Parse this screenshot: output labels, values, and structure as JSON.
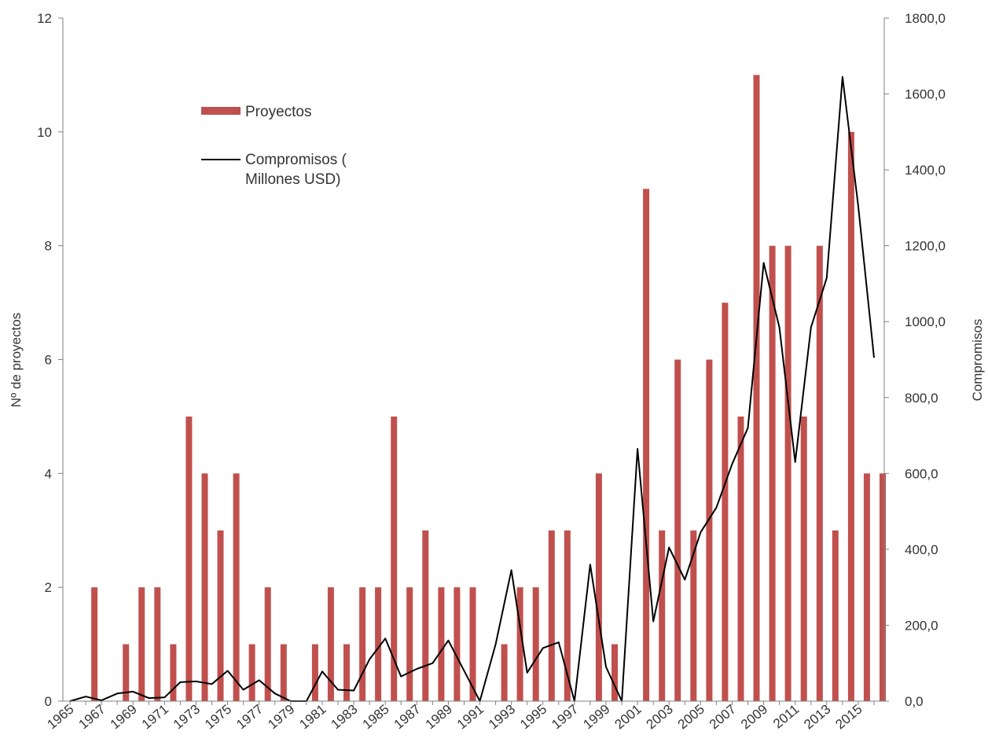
{
  "chart_data": {
    "type": "bar",
    "ylabel_left": "Nº de proyectos",
    "ylabel_right": "Compromisos",
    "ylim_left": [
      0,
      12
    ],
    "ylim_right": [
      0,
      1800
    ],
    "left_ticks": [
      0,
      2,
      4,
      6,
      8,
      10,
      12
    ],
    "right_ticks": [
      "0,0",
      "200,0",
      "400,0",
      "600,0",
      "800,0",
      "1000,0",
      "1200,0",
      "1400,0",
      "1600,0",
      "1800,0"
    ],
    "right_tick_values": [
      0,
      200,
      400,
      600,
      800,
      1000,
      1200,
      1400,
      1600,
      1800
    ],
    "x_tick_labels": [
      "1965",
      "1967",
      "1969",
      "1971",
      "1973",
      "1975",
      "1977",
      "1979",
      "1981",
      "1983",
      "1985",
      "1987",
      "1989",
      "1991",
      "1993",
      "1995",
      "1997",
      "1999",
      "2001",
      "2003",
      "2005",
      "2007",
      "2009",
      "2011",
      "2013",
      "2015"
    ],
    "years": [
      1965,
      1966,
      1967,
      1968,
      1969,
      1970,
      1971,
      1972,
      1973,
      1974,
      1975,
      1976,
      1977,
      1978,
      1979,
      1980,
      1981,
      1982,
      1983,
      1984,
      1985,
      1986,
      1987,
      1988,
      1989,
      1990,
      1991,
      1992,
      1993,
      1994,
      1995,
      1996,
      1997,
      1998,
      1999,
      2000,
      2001,
      2002,
      2003,
      2004,
      2005,
      2006,
      2007,
      2008,
      2009,
      2010,
      2011,
      2012,
      2013,
      2014,
      2015,
      2016
    ],
    "legend": {
      "position": "top-left",
      "bars_label": "Proyectos",
      "line_label_1": "Compromisos (",
      "line_label_2": "Millones USD)"
    },
    "series": [
      {
        "name": "Proyectos",
        "kind": "bar",
        "axis": "left",
        "color": "#c0504d",
        "values": [
          0,
          2,
          0,
          1,
          2,
          2,
          1,
          5,
          4,
          3,
          4,
          1,
          2,
          1,
          0,
          1,
          2,
          1,
          2,
          2,
          5,
          2,
          3,
          2,
          2,
          2,
          0,
          1,
          2,
          2,
          3,
          3,
          0,
          4,
          1,
          0,
          9,
          3,
          6,
          3,
          6,
          7,
          5,
          11,
          8,
          8,
          5,
          8,
          3,
          10,
          4,
          4
        ]
      },
      {
        "name": "Compromisos ( Millones USD)",
        "kind": "line",
        "axis": "right",
        "color": "#000000",
        "values": [
          0,
          12,
          2,
          20,
          25,
          8,
          10,
          50,
          52,
          45,
          80,
          30,
          55,
          20,
          0,
          0,
          78,
          30,
          28,
          110,
          165,
          65,
          85,
          100,
          160,
          80,
          0,
          150,
          345,
          75,
          140,
          155,
          0,
          360,
          90,
          0,
          665,
          210,
          405,
          320,
          445,
          510,
          625,
          720,
          1155,
          985,
          630,
          985,
          1115,
          1645,
          1305,
          905
        ]
      }
    ]
  }
}
